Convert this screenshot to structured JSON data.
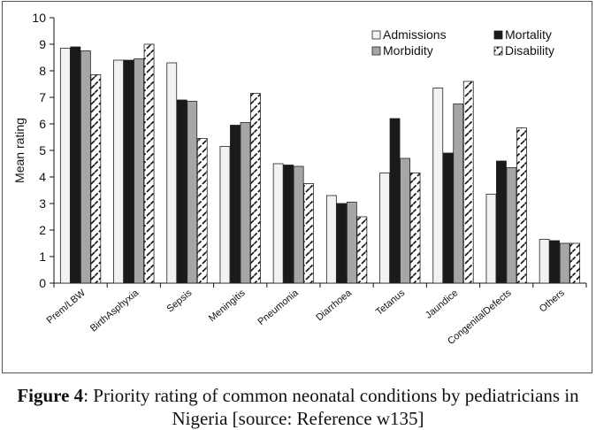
{
  "chart_data": {
    "type": "bar",
    "ylabel": "Mean rating",
    "xlabel": "",
    "ylim": [
      0,
      10
    ],
    "yticks": [
      0,
      1,
      2,
      3,
      4,
      5,
      6,
      7,
      8,
      9,
      10
    ],
    "grid": false,
    "legend_position": "top-right",
    "categories": [
      "Prem/LBW",
      "BirthAsphyxia",
      "Sepsis",
      "Meningitis",
      "Pneumonia",
      "Diarrhoea",
      "Tetanus",
      "Jaundice",
      "CongenitalDefects",
      "Others"
    ],
    "series": [
      {
        "name": "Admissions",
        "color": "#f2f2f2",
        "pattern": "solid",
        "values": [
          8.85,
          8.4,
          8.3,
          5.15,
          4.5,
          3.3,
          4.15,
          7.35,
          3.35,
          1.65
        ]
      },
      {
        "name": "Mortality",
        "color": "#1a1a1a",
        "pattern": "solid",
        "values": [
          8.9,
          8.4,
          6.9,
          5.95,
          4.45,
          3.0,
          6.2,
          4.9,
          4.6,
          1.6
        ]
      },
      {
        "name": "Morbidity",
        "color": "#a6a6a6",
        "pattern": "solid",
        "values": [
          8.75,
          8.45,
          6.85,
          6.05,
          4.4,
          3.05,
          4.7,
          6.75,
          4.35,
          1.5
        ]
      },
      {
        "name": "Disability",
        "color": "#ffffff",
        "pattern": "dashed-diagonal",
        "values": [
          7.85,
          9.0,
          5.45,
          7.15,
          3.75,
          2.5,
          4.15,
          7.6,
          5.85,
          1.5
        ]
      }
    ]
  },
  "caption": {
    "label": "Figure 4",
    "text": ": Priority rating of common neonatal conditions by pediatricians in Nigeria [source: Reference w135]"
  }
}
